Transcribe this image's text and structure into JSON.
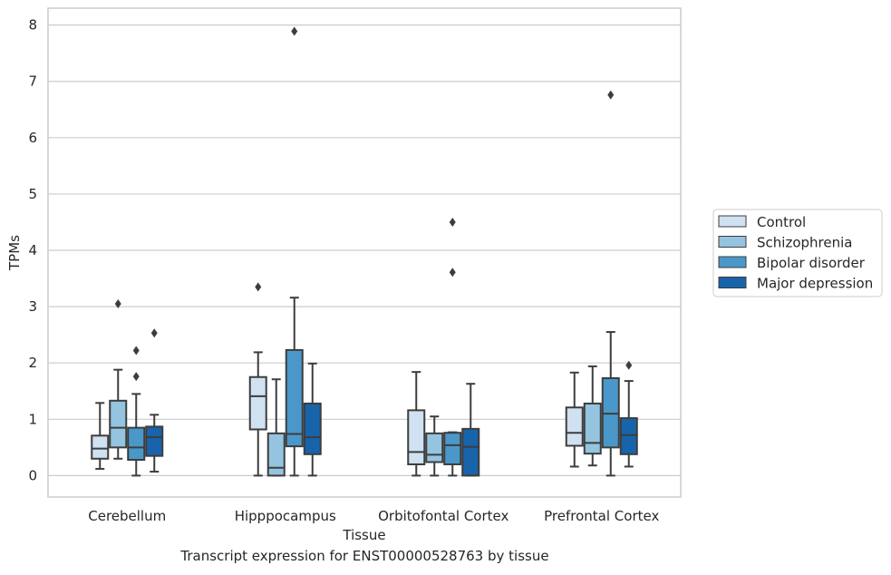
{
  "chart_data": {
    "type": "boxplot",
    "title": "",
    "xlabel": "Tissue",
    "ylabel": "TPMs",
    "ylim": [
      -0.38,
      8.3
    ],
    "yticks": [
      0,
      1,
      2,
      3,
      4,
      5,
      6,
      7,
      8
    ],
    "grid": true,
    "legend_position": "right",
    "categories": [
      "Cerebellum",
      "Hipppocampus",
      "Orbitofontal Cortex",
      "Prefrontal Cortex"
    ],
    "series": [
      {
        "name": "Control",
        "color": "#d0e1f2",
        "boxes": [
          {
            "whislo": 0.12,
            "q1": 0.3,
            "med": 0.48,
            "q3": 0.71,
            "whishi": 1.29,
            "fliers": []
          },
          {
            "whislo": 0.0,
            "q1": 0.82,
            "med": 1.41,
            "q3": 1.75,
            "whishi": 2.19,
            "fliers": [
              3.35
            ]
          },
          {
            "whislo": 0.0,
            "q1": 0.2,
            "med": 0.42,
            "q3": 1.16,
            "whishi": 1.84,
            "fliers": []
          },
          {
            "whislo": 0.16,
            "q1": 0.53,
            "med": 0.76,
            "q3": 1.21,
            "whishi": 1.83,
            "fliers": []
          }
        ]
      },
      {
        "name": "Schizophrenia",
        "color": "#94c4df",
        "boxes": [
          {
            "whislo": 0.3,
            "q1": 0.5,
            "med": 0.85,
            "q3": 1.33,
            "whishi": 1.88,
            "fliers": [
              3.05
            ]
          },
          {
            "whislo": 0.0,
            "q1": 0.0,
            "med": 0.14,
            "q3": 0.75,
            "whishi": 1.71,
            "fliers": []
          },
          {
            "whislo": 0.0,
            "q1": 0.24,
            "med": 0.37,
            "q3": 0.75,
            "whishi": 1.05,
            "fliers": []
          },
          {
            "whislo": 0.18,
            "q1": 0.39,
            "med": 0.58,
            "q3": 1.28,
            "whishi": 1.94,
            "fliers": []
          }
        ]
      },
      {
        "name": "Bipolar disorder",
        "color": "#4a98c9",
        "boxes": [
          {
            "whislo": 0.0,
            "q1": 0.28,
            "med": 0.5,
            "q3": 0.85,
            "whishi": 1.45,
            "fliers": [
              1.76,
              2.22
            ]
          },
          {
            "whislo": 0.0,
            "q1": 0.52,
            "med": 0.74,
            "q3": 2.23,
            "whishi": 3.16,
            "fliers": [
              7.89
            ]
          },
          {
            "whislo": 0.0,
            "q1": 0.2,
            "med": 0.54,
            "q3": 0.76,
            "whishi": 0.77,
            "fliers": [
              3.61,
              4.5
            ]
          },
          {
            "whislo": 0.0,
            "q1": 0.5,
            "med": 1.1,
            "q3": 1.73,
            "whishi": 2.55,
            "fliers": [
              6.76
            ]
          }
        ]
      },
      {
        "name": "Major depression",
        "color": "#1764ab",
        "boxes": [
          {
            "whislo": 0.07,
            "q1": 0.35,
            "med": 0.68,
            "q3": 0.87,
            "whishi": 1.08,
            "fliers": [
              2.53
            ]
          },
          {
            "whislo": 0.0,
            "q1": 0.38,
            "med": 0.68,
            "q3": 1.28,
            "whishi": 1.99,
            "fliers": []
          },
          {
            "whislo": 0.0,
            "q1": 0.0,
            "med": 0.51,
            "q3": 0.83,
            "whishi": 1.63,
            "fliers": []
          },
          {
            "whislo": 0.16,
            "q1": 0.38,
            "med": 0.72,
            "q3": 1.02,
            "whishi": 1.68,
            "fliers": [
              1.96
            ]
          }
        ]
      }
    ]
  },
  "caption": "Transcript expression for ENST00000528763 by tissue"
}
